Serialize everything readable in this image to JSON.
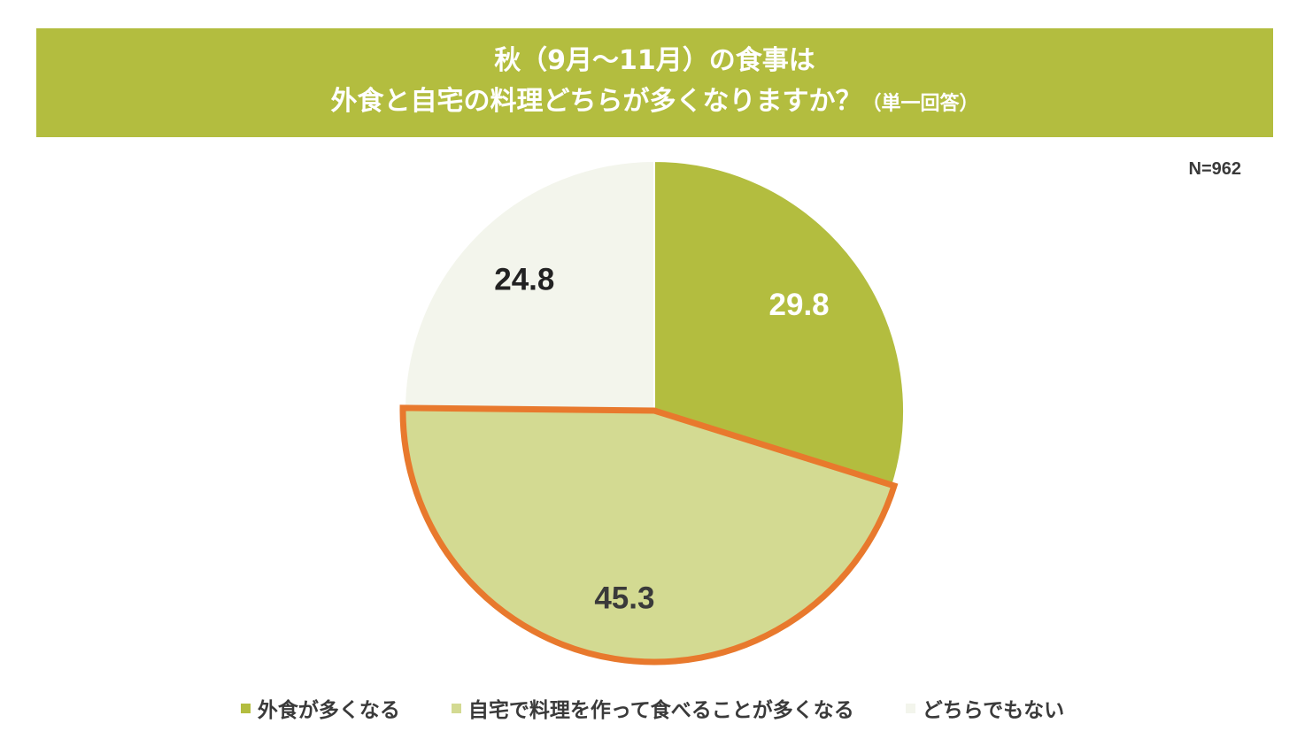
{
  "header": {
    "title_line1": "秋（9月～11月）の食事は",
    "title_line2": "外食と自宅の料理どちらが多くなりますか？",
    "title_note": "（単一回答）"
  },
  "sample_size": "N=962",
  "chart_data": {
    "type": "pie",
    "title": "秋（9月～11月）の食事は 外食と自宅の料理どちらが多くなりますか？（単一回答）",
    "start_angle_deg": 0,
    "direction": "clockwise",
    "categories": [
      "外食が多くなる",
      "自宅で料理を作って食べることが多くなる",
      "どちらでもない"
    ],
    "values": [
      29.8,
      45.3,
      24.8
    ],
    "labels": [
      "29.8",
      "45.3",
      "24.8"
    ],
    "colors": [
      "#b3bd3f",
      "#d3da92",
      "#f3f5ec"
    ],
    "label_colors": [
      "#ffffff",
      "#3a3a3a",
      "#222222"
    ],
    "highlight_index": 1,
    "highlight_color": "#e8792d",
    "legend_position": "bottom"
  }
}
